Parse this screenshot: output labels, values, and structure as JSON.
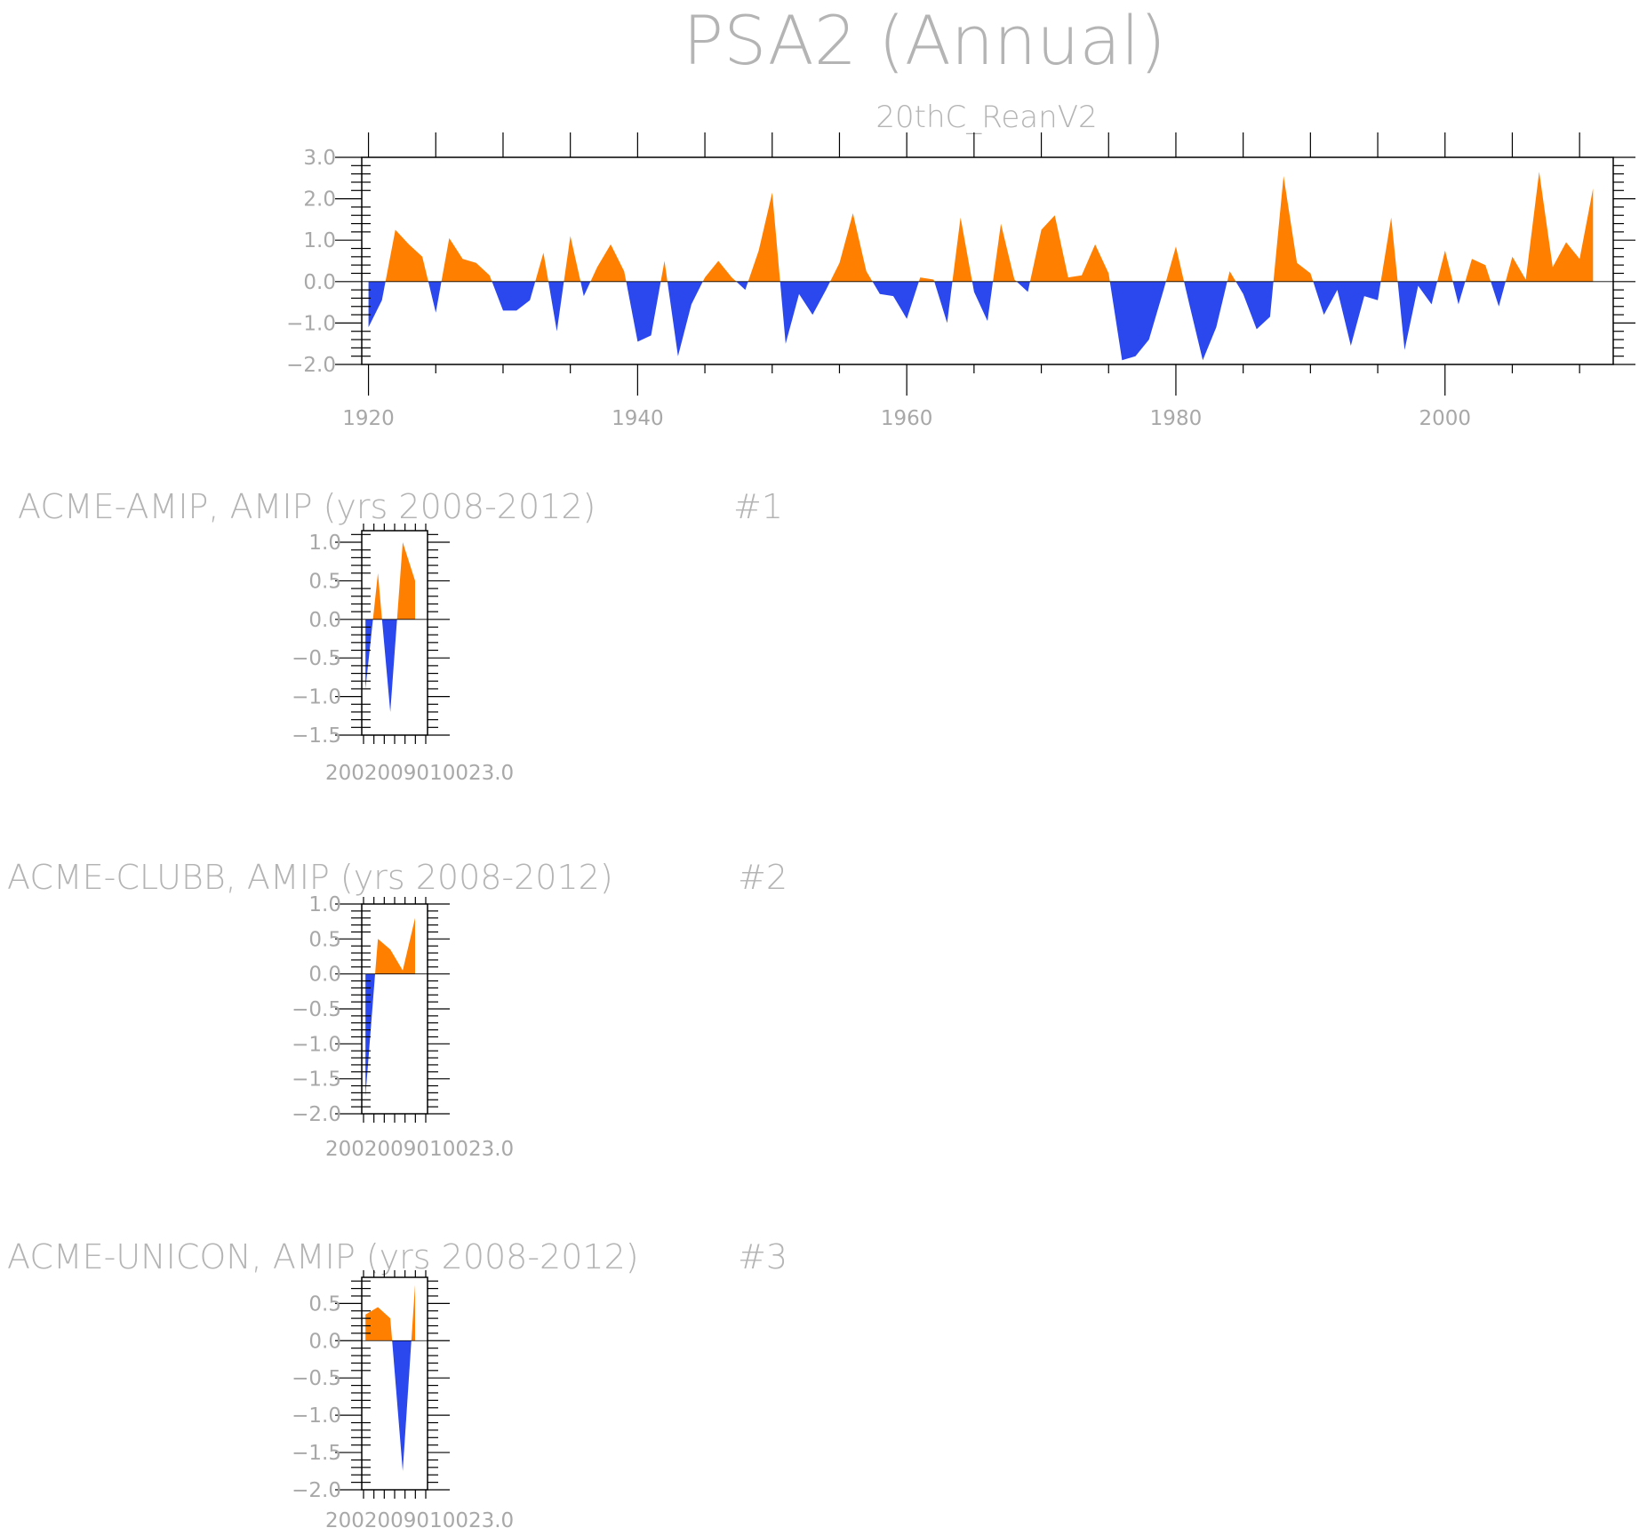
{
  "page": {
    "title": "PSA2 (Annual)",
    "colors": {
      "positive": "#ff8000",
      "negative": "#2b47ee",
      "text": "#b4b4b4"
    }
  },
  "chart_data": [
    {
      "type": "area",
      "title": "20thC_ReanV2",
      "xlim": [
        1919.5,
        2012.5
      ],
      "ylim": [
        -2.0,
        3.0
      ],
      "xticks": [
        1920,
        1940,
        1960,
        1980,
        2000
      ],
      "yticks": [
        "-2.0",
        "-1.0",
        "0.0",
        "1.0",
        "2.0",
        "3.0"
      ],
      "x": [
        1920,
        1921,
        1922,
        1923,
        1924,
        1925,
        1926,
        1927,
        1928,
        1929,
        1930,
        1931,
        1932,
        1933,
        1934,
        1935,
        1936,
        1937,
        1938,
        1939,
        1940,
        1941,
        1942,
        1943,
        1944,
        1945,
        1946,
        1947,
        1948,
        1949,
        1950,
        1951,
        1952,
        1953,
        1954,
        1955,
        1956,
        1957,
        1958,
        1959,
        1960,
        1961,
        1962,
        1963,
        1964,
        1965,
        1966,
        1967,
        1968,
        1969,
        1970,
        1971,
        1972,
        1973,
        1974,
        1975,
        1976,
        1977,
        1978,
        1979,
        1980,
        1981,
        1982,
        1983,
        1984,
        1985,
        1986,
        1987,
        1988,
        1989,
        1990,
        1991,
        1992,
        1993,
        1994,
        1995,
        1996,
        1997,
        1998,
        1999,
        2000,
        2001,
        2002,
        2003,
        2004,
        2005,
        2006,
        2007,
        2008,
        2009,
        2010,
        2011
      ],
      "values": [
        -1.1,
        -0.45,
        1.25,
        0.9,
        0.6,
        -0.75,
        1.05,
        0.55,
        0.45,
        0.15,
        -0.7,
        -0.7,
        -0.45,
        0.7,
        -1.2,
        1.1,
        -0.35,
        0.35,
        0.9,
        0.25,
        -1.45,
        -1.3,
        0.5,
        -1.8,
        -0.55,
        0.1,
        0.5,
        0.1,
        -0.2,
        0.75,
        2.15,
        -1.5,
        -0.3,
        -0.8,
        -0.2,
        0.45,
        1.65,
        0.25,
        -0.3,
        -0.35,
        -0.9,
        0.1,
        0.05,
        -1.0,
        1.55,
        -0.25,
        -0.95,
        1.4,
        0.05,
        -0.25,
        1.25,
        1.6,
        0.1,
        0.15,
        0.9,
        0.2,
        -1.9,
        -1.8,
        -1.4,
        -0.3,
        0.85,
        -0.55,
        -1.9,
        -1.1,
        0.25,
        -0.3,
        -1.15,
        -0.85,
        2.55,
        0.45,
        0.2,
        -0.8,
        -0.2,
        -1.55,
        -0.35,
        -0.45,
        1.55,
        -1.65,
        -0.1,
        -0.55,
        0.75,
        -0.55,
        0.55,
        0.4,
        -0.6,
        0.6,
        0.05,
        2.65,
        0.35,
        0.95,
        0.55,
        2.25
      ]
    },
    {
      "type": "area",
      "title": "ACME-AMIP, AMIP (yrs 2008-2012)",
      "tag": "#1",
      "xlim": [
        2007.7,
        2013.0
      ],
      "ylim": [
        -1.5,
        1.15
      ],
      "xtick_label": "2002009010023.0",
      "yticks": [
        "-1.5",
        "-1.0",
        "-0.5",
        "0.0",
        "0.5",
        "1.0"
      ],
      "x": [
        2008,
        2009,
        2010,
        2011,
        2012
      ],
      "values": [
        -0.9,
        0.6,
        -1.2,
        1.0,
        0.5
      ]
    },
    {
      "type": "area",
      "title": "ACME-CLUBB, AMIP (yrs 2008-2012)",
      "tag": "#2",
      "xlim": [
        2007.7,
        2013.0
      ],
      "ylim": [
        -2.0,
        1.0
      ],
      "xtick_label": "2002009010023.0",
      "yticks": [
        "-2.0",
        "-1.5",
        "-1.0",
        "-0.5",
        "0.0",
        "0.5",
        "1.0"
      ],
      "x": [
        2008,
        2009,
        2010,
        2011,
        2012
      ],
      "values": [
        -1.75,
        0.5,
        0.35,
        0.05,
        0.8
      ]
    },
    {
      "type": "area",
      "title": "ACME-UNICON, AMIP (yrs 2008-2012)",
      "tag": "#3",
      "xlim": [
        2007.7,
        2013.0
      ],
      "ylim": [
        -2.0,
        0.85
      ],
      "xtick_label": "2002009010023.0",
      "yticks": [
        "-2.0",
        "-1.5",
        "-1.0",
        "-0.5",
        "0.0",
        "0.5"
      ],
      "x": [
        2008,
        2009,
        2010,
        2011,
        2012
      ],
      "values": [
        0.35,
        0.45,
        0.3,
        -1.75,
        0.75
      ]
    }
  ]
}
